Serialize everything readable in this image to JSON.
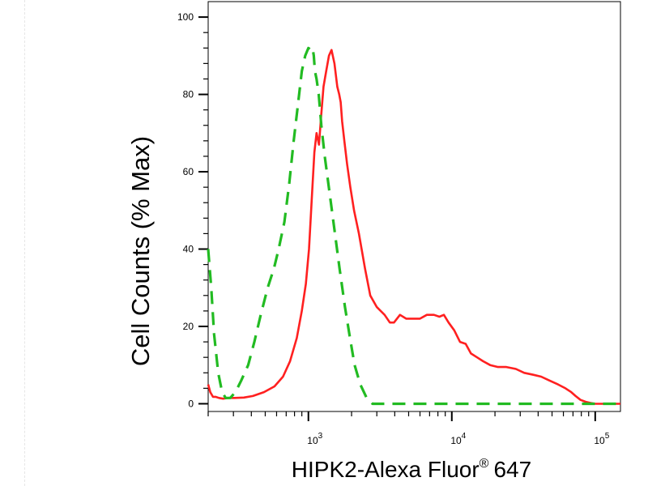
{
  "chart_data": {
    "type": "line",
    "xlabel": "HIPK2-Alexa Fluor",
    "xlabel_superscript": "®",
    "xlabel_suffix": "647",
    "ylabel": "Cell Counts (% Max)",
    "x_scale": "log",
    "xlim": [
      200,
      150000
    ],
    "ylim": [
      -2,
      104
    ],
    "y_ticks": [
      0,
      20,
      40,
      60,
      80,
      100
    ],
    "x_ticks": [
      {
        "value": 1000,
        "base": "10",
        "exponent": "3"
      },
      {
        "value": 10000,
        "base": "10",
        "exponent": "4"
      },
      {
        "value": 100000,
        "base": "10",
        "exponent": "5"
      }
    ],
    "series": [
      {
        "color": "#ff2020",
        "style": "solid",
        "x": [
          200,
          207,
          216,
          225,
          238,
          254,
          276,
          305,
          355,
          410,
          490,
          580,
          665,
          745,
          830,
          900,
          960,
          1010,
          1055,
          1100,
          1140,
          1185,
          1230,
          1275,
          1330,
          1390,
          1450,
          1520,
          1590,
          1640,
          1680,
          1720,
          1780,
          1860,
          1960,
          2080,
          2250,
          2480,
          2700,
          3000,
          3400,
          3700,
          3950,
          4350,
          4800,
          5300,
          6000,
          6700,
          7500,
          8200,
          8800,
          9500,
          10400,
          11400,
          12500,
          13600,
          15000,
          16500,
          18500,
          21000,
          24000,
          28000,
          32000,
          37000,
          42000,
          48000,
          55000,
          62000,
          68000,
          73000,
          79000,
          86000,
          93000,
          100000,
          106000,
          120000,
          150000
        ],
        "y": [
          5,
          3,
          1.8,
          1.8,
          1.5,
          1.3,
          1.5,
          1.5,
          1.6,
          2,
          3,
          4.5,
          7,
          11,
          17,
          24,
          31,
          40,
          53,
          65,
          70,
          67,
          75,
          82,
          86,
          90,
          91.5,
          88,
          82,
          80,
          78,
          73,
          68,
          62,
          56,
          50,
          44,
          35,
          28,
          25,
          23,
          21,
          21,
          23,
          22,
          22,
          22,
          23,
          23,
          22.5,
          23,
          21,
          19,
          16,
          15.5,
          13,
          12,
          11,
          10,
          9.5,
          9.5,
          9,
          8,
          7.5,
          7,
          6,
          5,
          4,
          3,
          2,
          1,
          0.5,
          0.2,
          0,
          0,
          0,
          0
        ]
      },
      {
        "color": "#22bb22",
        "style": "dashed",
        "x": [
          200,
          210,
          220,
          235,
          250,
          265,
          285,
          310,
          340,
          380,
          420,
          465,
          520,
          575,
          620,
          680,
          735,
          790,
          850,
          900,
          950,
          1000,
          1040,
          1070,
          1090,
          1110,
          1140,
          1180,
          1230,
          1300,
          1400,
          1520,
          1650,
          1800,
          1950,
          2100,
          2300,
          2550,
          2800,
          3200,
          4000,
          6000,
          10000,
          20000,
          40000,
          80000,
          150000
        ],
        "y": [
          40,
          30,
          18,
          8,
          3,
          1.5,
          1.5,
          3,
          6,
          10,
          16,
          23,
          30,
          35,
          40,
          47,
          57,
          68,
          78,
          86,
          90,
          92,
          91.5,
          92,
          90,
          86,
          84,
          80,
          72,
          64,
          55,
          45,
          35,
          25,
          17,
          10,
          5,
          1.5,
          0,
          0,
          0,
          0,
          0,
          0,
          0,
          0,
          0
        ]
      }
    ]
  }
}
